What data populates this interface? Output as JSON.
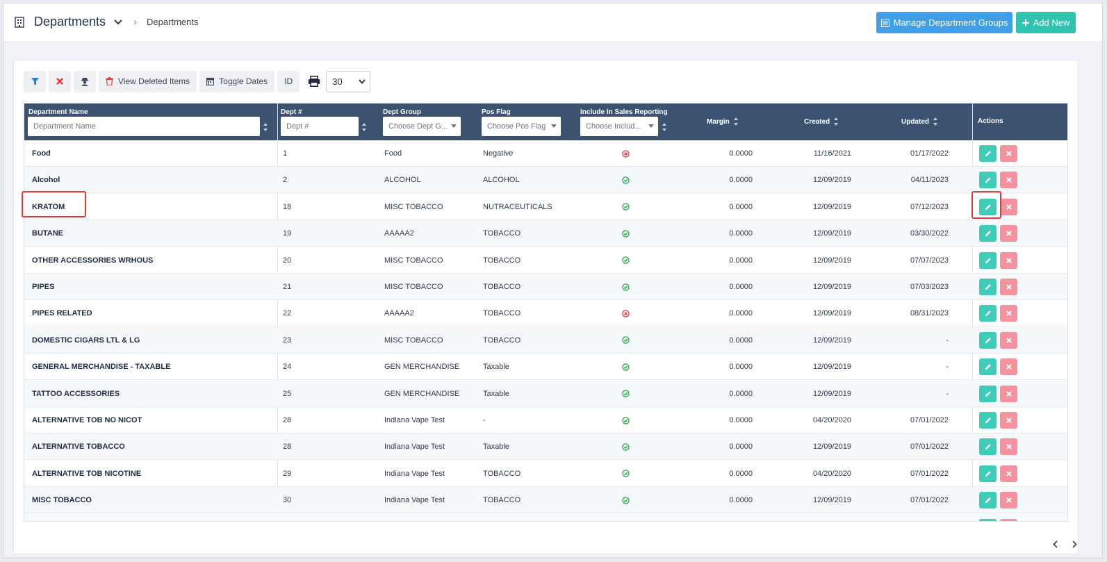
{
  "header": {
    "title": "Departments",
    "breadcrumb": "Departments",
    "manage_groups_label": "Manage Department Groups",
    "add_new_label": "Add New"
  },
  "toolbar": {
    "view_deleted_label": "View Deleted Items",
    "toggle_dates_label": "Toggle Dates",
    "id_label": "ID",
    "page_size": "30"
  },
  "columns": {
    "name": {
      "label": "Department Name",
      "placeholder": "Department Name"
    },
    "dept": {
      "label": "Dept #",
      "placeholder": "Dept #"
    },
    "group": {
      "label": "Dept Group",
      "placeholder": "Choose Dept G..."
    },
    "flag": {
      "label": "Pos Flag",
      "placeholder": "Choose Pos Flag"
    },
    "sales": {
      "label": "Include In Sales Reporting",
      "placeholder": "Choose Includ..."
    },
    "margin": {
      "label": "Margin"
    },
    "created": {
      "label": "Created"
    },
    "updated": {
      "label": "Updated"
    },
    "actions": {
      "label": "Actions"
    }
  },
  "rows": [
    {
      "name": "Food",
      "dept": "1",
      "group": "Food",
      "flag": "Negative",
      "sales": false,
      "margin": "0.0000",
      "created": "11/16/2021",
      "updated": "01/17/2022"
    },
    {
      "name": "Alcohol",
      "dept": "2",
      "group": "ALCOHOL",
      "flag": "ALCOHOL",
      "sales": true,
      "margin": "0.0000",
      "created": "12/09/2019",
      "updated": "04/11/2023"
    },
    {
      "name": "KRATOM",
      "dept": "18",
      "group": "MISC TOBACCO",
      "flag": "NUTRACEUTICALS",
      "sales": true,
      "margin": "0.0000",
      "created": "12/09/2019",
      "updated": "07/12/2023"
    },
    {
      "name": "BUTANE",
      "dept": "19",
      "group": "AAAAA2",
      "flag": "TOBACCO",
      "sales": true,
      "margin": "0.0000",
      "created": "12/09/2019",
      "updated": "03/30/2022"
    },
    {
      "name": "OTHER ACCESSORIES WRHOUS",
      "dept": "20",
      "group": "MISC TOBACCO",
      "flag": "TOBACCO",
      "sales": true,
      "margin": "0.0000",
      "created": "12/09/2019",
      "updated": "07/07/2023"
    },
    {
      "name": "PIPES",
      "dept": "21",
      "group": "MISC TOBACCO",
      "flag": "TOBACCO",
      "sales": true,
      "margin": "0.0000",
      "created": "12/09/2019",
      "updated": "07/03/2023"
    },
    {
      "name": "PIPES RELATED",
      "dept": "22",
      "group": "AAAAA2",
      "flag": "TOBACCO",
      "sales": false,
      "margin": "0.0000",
      "created": "12/09/2019",
      "updated": "08/31/2023"
    },
    {
      "name": "DOMESTIC CIGARS LTL & LG",
      "dept": "23",
      "group": "MISC TOBACCO",
      "flag": "TOBACCO",
      "sales": true,
      "margin": "0.0000",
      "created": "12/09/2019",
      "updated": "-"
    },
    {
      "name": "GENERAL MERCHANDISE - TAXABLE",
      "dept": "24",
      "group": "GEN MERCHANDISE",
      "flag": "Taxable",
      "sales": true,
      "margin": "0.0000",
      "created": "12/09/2019",
      "updated": "-"
    },
    {
      "name": "TATTOO ACCESSORIES",
      "dept": "25",
      "group": "GEN MERCHANDISE",
      "flag": "Taxable",
      "sales": true,
      "margin": "0.0000",
      "created": "12/09/2019",
      "updated": "-"
    },
    {
      "name": "ALTERNATIVE TOB NO NICOT",
      "dept": "28",
      "group": "Indiana Vape Test",
      "flag": "-",
      "sales": true,
      "margin": "0.0000",
      "created": "04/20/2020",
      "updated": "07/01/2022"
    },
    {
      "name": "ALTERNATIVE TOBACCO",
      "dept": "28",
      "group": "Indiana Vape Test",
      "flag": "Taxable",
      "sales": true,
      "margin": "0.0000",
      "created": "12/09/2019",
      "updated": "07/01/2022"
    },
    {
      "name": "ALTERNATIVE TOB NICOTINE",
      "dept": "29",
      "group": "Indiana Vape Test",
      "flag": "TOBACCO",
      "sales": true,
      "margin": "0.0000",
      "created": "04/20/2020",
      "updated": "07/01/2022"
    },
    {
      "name": "MISC TOBACCO",
      "dept": "30",
      "group": "Indiana Vape Test",
      "flag": "TOBACCO",
      "sales": true,
      "margin": "0.0000",
      "created": "12/09/2019",
      "updated": "07/01/2022"
    }
  ]
}
